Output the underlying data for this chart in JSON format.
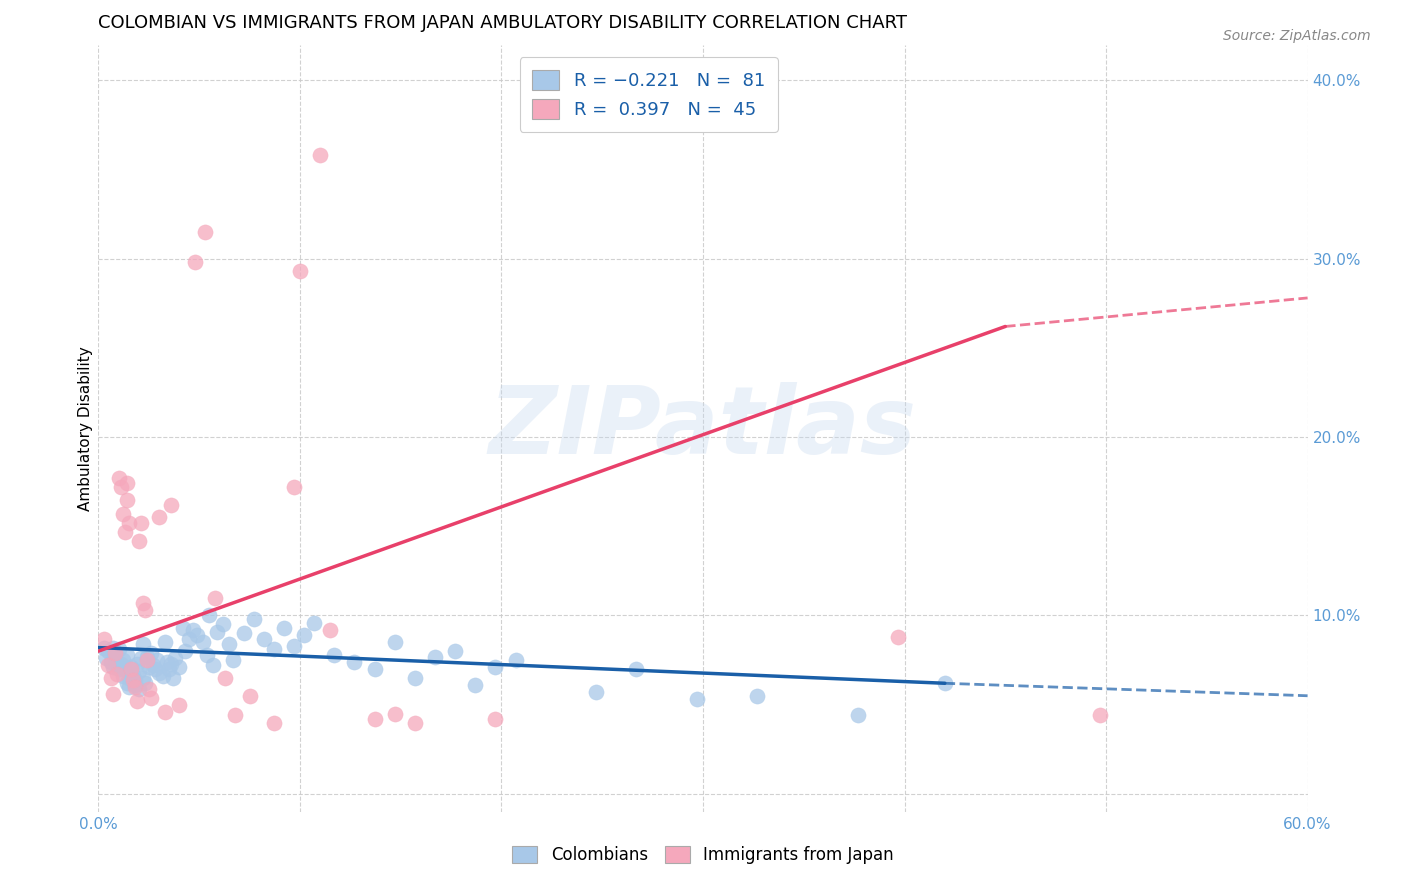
{
  "title": "COLOMBIAN VS IMMIGRANTS FROM JAPAN AMBULATORY DISABILITY CORRELATION CHART",
  "source": "Source: ZipAtlas.com",
  "ylabel": "Ambulatory Disability",
  "xlim": [
    0.0,
    0.6
  ],
  "ylim": [
    -0.01,
    0.42
  ],
  "xticks": [
    0.0,
    0.1,
    0.2,
    0.3,
    0.4,
    0.5,
    0.6
  ],
  "xtick_labels": [
    "0.0%",
    "",
    "",
    "",
    "",
    "",
    "60.0%"
  ],
  "yticks": [
    0.0,
    0.1,
    0.2,
    0.3,
    0.4
  ],
  "ytick_labels": [
    "",
    "10.0%",
    "20.0%",
    "30.0%",
    "40.0%"
  ],
  "watermark": "ZIPatlas",
  "blue_color": "#a8c8e8",
  "pink_color": "#f5a8bc",
  "blue_line_color": "#1a5fa8",
  "pink_line_color": "#e8406a",
  "blue_scatter": [
    [
      0.003,
      0.082
    ],
    [
      0.004,
      0.076
    ],
    [
      0.005,
      0.08
    ],
    [
      0.006,
      0.074
    ],
    [
      0.007,
      0.082
    ],
    [
      0.007,
      0.071
    ],
    [
      0.008,
      0.077
    ],
    [
      0.009,
      0.073
    ],
    [
      0.01,
      0.07
    ],
    [
      0.01,
      0.081
    ],
    [
      0.011,
      0.073
    ],
    [
      0.012,
      0.066
    ],
    [
      0.012,
      0.075
    ],
    [
      0.013,
      0.07
    ],
    [
      0.014,
      0.062
    ],
    [
      0.014,
      0.078
    ],
    [
      0.015,
      0.065
    ],
    [
      0.015,
      0.06
    ],
    [
      0.016,
      0.071
    ],
    [
      0.017,
      0.066
    ],
    [
      0.018,
      0.061
    ],
    [
      0.018,
      0.064
    ],
    [
      0.019,
      0.073
    ],
    [
      0.02,
      0.069
    ],
    [
      0.02,
      0.059
    ],
    [
      0.021,
      0.076
    ],
    [
      0.022,
      0.084
    ],
    [
      0.022,
      0.065
    ],
    [
      0.023,
      0.062
    ],
    [
      0.024,
      0.077
    ],
    [
      0.025,
      0.071
    ],
    [
      0.026,
      0.079
    ],
    [
      0.027,
      0.072
    ],
    [
      0.028,
      0.07
    ],
    [
      0.029,
      0.075
    ],
    [
      0.03,
      0.068
    ],
    [
      0.032,
      0.066
    ],
    [
      0.033,
      0.085
    ],
    [
      0.034,
      0.074
    ],
    [
      0.035,
      0.07
    ],
    [
      0.036,
      0.073
    ],
    [
      0.037,
      0.065
    ],
    [
      0.038,
      0.076
    ],
    [
      0.04,
      0.071
    ],
    [
      0.042,
      0.093
    ],
    [
      0.043,
      0.08
    ],
    [
      0.045,
      0.087
    ],
    [
      0.047,
      0.092
    ],
    [
      0.049,
      0.089
    ],
    [
      0.052,
      0.085
    ],
    [
      0.054,
      0.078
    ],
    [
      0.055,
      0.1
    ],
    [
      0.057,
      0.072
    ],
    [
      0.059,
      0.091
    ],
    [
      0.062,
      0.095
    ],
    [
      0.065,
      0.084
    ],
    [
      0.067,
      0.075
    ],
    [
      0.072,
      0.09
    ],
    [
      0.077,
      0.098
    ],
    [
      0.082,
      0.087
    ],
    [
      0.087,
      0.081
    ],
    [
      0.092,
      0.093
    ],
    [
      0.097,
      0.083
    ],
    [
      0.102,
      0.089
    ],
    [
      0.107,
      0.096
    ],
    [
      0.117,
      0.078
    ],
    [
      0.127,
      0.074
    ],
    [
      0.137,
      0.07
    ],
    [
      0.147,
      0.085
    ],
    [
      0.157,
      0.065
    ],
    [
      0.167,
      0.077
    ],
    [
      0.177,
      0.08
    ],
    [
      0.187,
      0.061
    ],
    [
      0.197,
      0.071
    ],
    [
      0.207,
      0.075
    ],
    [
      0.247,
      0.057
    ],
    [
      0.267,
      0.07
    ],
    [
      0.297,
      0.053
    ],
    [
      0.327,
      0.055
    ],
    [
      0.377,
      0.044
    ],
    [
      0.42,
      0.062
    ]
  ],
  "pink_scatter": [
    [
      0.003,
      0.087
    ],
    [
      0.005,
      0.072
    ],
    [
      0.006,
      0.065
    ],
    [
      0.007,
      0.056
    ],
    [
      0.008,
      0.079
    ],
    [
      0.009,
      0.067
    ],
    [
      0.01,
      0.177
    ],
    [
      0.011,
      0.172
    ],
    [
      0.012,
      0.157
    ],
    [
      0.013,
      0.147
    ],
    [
      0.014,
      0.165
    ],
    [
      0.014,
      0.174
    ],
    [
      0.015,
      0.152
    ],
    [
      0.016,
      0.07
    ],
    [
      0.017,
      0.064
    ],
    [
      0.018,
      0.06
    ],
    [
      0.019,
      0.052
    ],
    [
      0.02,
      0.142
    ],
    [
      0.021,
      0.152
    ],
    [
      0.022,
      0.107
    ],
    [
      0.023,
      0.103
    ],
    [
      0.024,
      0.075
    ],
    [
      0.025,
      0.059
    ],
    [
      0.026,
      0.054
    ],
    [
      0.03,
      0.155
    ],
    [
      0.033,
      0.046
    ],
    [
      0.036,
      0.162
    ],
    [
      0.04,
      0.05
    ],
    [
      0.048,
      0.298
    ],
    [
      0.053,
      0.315
    ],
    [
      0.058,
      0.11
    ],
    [
      0.063,
      0.065
    ],
    [
      0.068,
      0.044
    ],
    [
      0.075,
      0.055
    ],
    [
      0.087,
      0.04
    ],
    [
      0.097,
      0.172
    ],
    [
      0.1,
      0.293
    ],
    [
      0.11,
      0.358
    ],
    [
      0.115,
      0.092
    ],
    [
      0.137,
      0.042
    ],
    [
      0.147,
      0.045
    ],
    [
      0.157,
      0.04
    ],
    [
      0.197,
      0.042
    ],
    [
      0.397,
      0.088
    ],
    [
      0.497,
      0.044
    ]
  ],
  "blue_trendline_solid": [
    [
      0.0,
      0.082
    ],
    [
      0.42,
      0.062
    ]
  ],
  "blue_trendline_dash": [
    [
      0.42,
      0.062
    ],
    [
      0.6,
      0.055
    ]
  ],
  "pink_trendline_solid": [
    [
      0.0,
      0.08
    ],
    [
      0.45,
      0.262
    ]
  ],
  "pink_trendline_dash": [
    [
      0.45,
      0.262
    ],
    [
      0.6,
      0.278
    ]
  ]
}
